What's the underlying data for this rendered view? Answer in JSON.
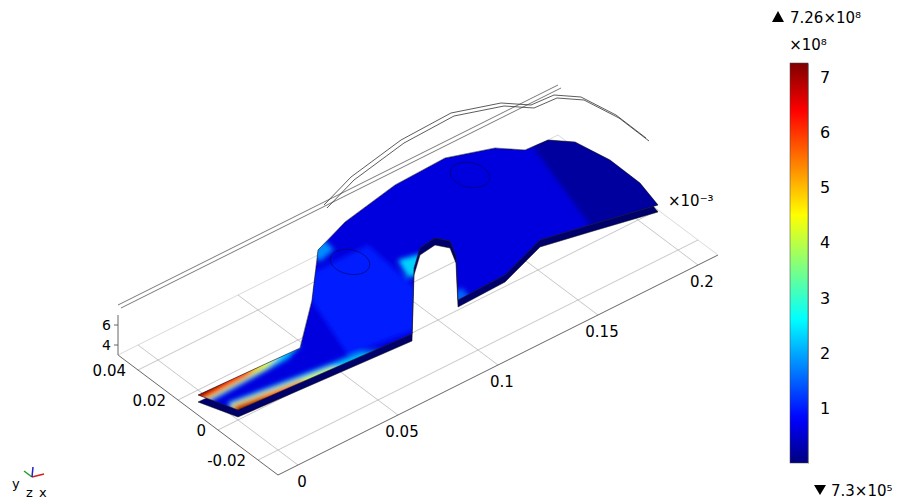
{
  "chart_data": {
    "type": "surface",
    "xlim": [
      -0.01,
      0.21
    ],
    "xticks": [
      0,
      0.05,
      0.1,
      0.15,
      0.2
    ],
    "ylim": [
      -0.03,
      0.05
    ],
    "yticks": [
      -0.02,
      0,
      0.02,
      0.04
    ],
    "zlim": [
      3,
      7
    ],
    "zticks": [
      4,
      6
    ],
    "z_multiplier": "×10⁻³",
    "triad_labels": [
      "y",
      "z",
      "x"
    ],
    "outline": [
      [
        0,
        0
      ],
      [
        0.0826,
        -0.0044
      ],
      [
        0.1096,
        0.0216
      ],
      [
        0.1194,
        0.0284
      ],
      [
        0.1279,
        0.0294
      ],
      [
        0.1312,
        0.0252
      ],
      [
        0.127,
        0.018
      ],
      [
        0.11,
        0
      ],
      [
        0.1341,
        0.0006
      ],
      [
        0.1586,
        0.0076
      ],
      [
        0.1796,
        0.0036
      ],
      [
        0.208,
        -0.002
      ],
      [
        0.2114,
        0.0104
      ],
      [
        0.2116,
        0.0256
      ],
      [
        0.2083,
        0.0398
      ],
      [
        0.201,
        0.046
      ],
      [
        0.1901,
        0.0466
      ],
      [
        0.1819,
        0.0534
      ],
      [
        0.1629,
        0.0594
      ],
      [
        0.1371,
        0.0586
      ],
      [
        0.1073,
        0.0538
      ],
      [
        0.088,
        0.048
      ],
      [
        0.0662,
        0.0292
      ],
      [
        0.0434,
        0.0124
      ],
      [
        -0.006,
        0.014
      ]
    ],
    "holes": [
      {
        "x": 0.0928,
        "y": 0.0368,
        "r": 0.007
      },
      {
        "x": 0.1636,
        "y": 0.0476,
        "r": 0.007
      }
    ],
    "base_value": 60000000,
    "regions": [
      {
        "value": 100000000,
        "points": [
          [
            0.055,
            0.0
          ],
          [
            0.1,
            -0.005
          ],
          [
            0.105,
            0.04
          ],
          [
            0.07,
            0.04
          ]
        ]
      },
      {
        "value": 20000000,
        "points": [
          [
            0.175,
            -0.01
          ],
          [
            0.22,
            -0.01
          ],
          [
            0.22,
            0.05
          ],
          [
            0.195,
            0.05
          ]
        ]
      },
      {
        "value": 220000000,
        "points": [
          [
            -0.01,
            -0.01
          ],
          [
            0.075,
            -0.01
          ],
          [
            0.06,
            -0.0015
          ],
          [
            0,
            0.005
          ]
        ]
      },
      {
        "value": 430000000,
        "points": [
          [
            -0.01,
            -0.01
          ],
          [
            0.055,
            -0.01
          ],
          [
            0.045,
            -0.0018
          ],
          [
            0,
            0.0036
          ]
        ]
      },
      {
        "value": 630000000,
        "points": [
          [
            -0.01,
            -0.01
          ],
          [
            0.04,
            -0.01
          ],
          [
            0.03,
            -0.0012
          ],
          [
            0,
            0.0025
          ]
        ]
      },
      {
        "value": 720000000,
        "points": [
          [
            -0.01,
            -0.01
          ],
          [
            0.018,
            -0.01
          ],
          [
            0.012,
            -0.0004
          ],
          [
            0,
            0.0014
          ]
        ]
      },
      {
        "value": 220000000,
        "points": [
          [
            -0.01,
            0.02
          ],
          [
            0.03,
            0.02
          ],
          [
            0.045,
            0.0135
          ],
          [
            0.035,
            0.0105
          ],
          [
            -0.01,
            0.0088
          ]
        ]
      },
      {
        "value": 430000000,
        "points": [
          [
            -0.01,
            0.02
          ],
          [
            0.035,
            0.0135
          ],
          [
            0.025,
            0.011
          ],
          [
            -0.01,
            0.0098
          ]
        ]
      },
      {
        "value": 630000000,
        "points": [
          [
            -0.01,
            0.02
          ],
          [
            0.026,
            0.0137
          ],
          [
            0.016,
            0.0117
          ],
          [
            -0.01,
            0.0108
          ]
        ]
      },
      {
        "value": 720000000,
        "points": [
          [
            -0.01,
            0.02
          ],
          [
            0.01,
            0.014
          ],
          [
            -0.01,
            0.0122
          ]
        ]
      },
      {
        "value": 230000000,
        "points": [
          [
            0.104,
            0.019
          ],
          [
            0.113,
            0.017
          ],
          [
            0.117,
            0.026
          ],
          [
            0.108,
            0.028
          ]
        ]
      },
      {
        "value": 180000000,
        "points": [
          [
            0.084,
            0.043
          ],
          [
            0.093,
            0.045
          ],
          [
            0.094,
            0.052
          ],
          [
            0.084,
            0.052
          ]
        ]
      },
      {
        "value": 150000000,
        "points": [
          [
            0.104,
            -0.004
          ],
          [
            0.114,
            -0.004
          ],
          [
            0.116,
            0.004
          ],
          [
            0.106,
            0.004
          ]
        ]
      }
    ],
    "colorbar": {
      "min": 730000,
      "max": 726000000,
      "min_label": "7.3×10⁵",
      "max_label": "7.26×10⁸",
      "multiplier": "×10⁸",
      "ticks": [
        {
          "value": 100000000,
          "label": "1"
        },
        {
          "value": 200000000,
          "label": "2"
        },
        {
          "value": 300000000,
          "label": "3"
        },
        {
          "value": 400000000,
          "label": "4"
        },
        {
          "value": 500000000,
          "label": "5"
        },
        {
          "value": 600000000,
          "label": "6"
        },
        {
          "value": 700000000,
          "label": "7"
        }
      ]
    }
  }
}
